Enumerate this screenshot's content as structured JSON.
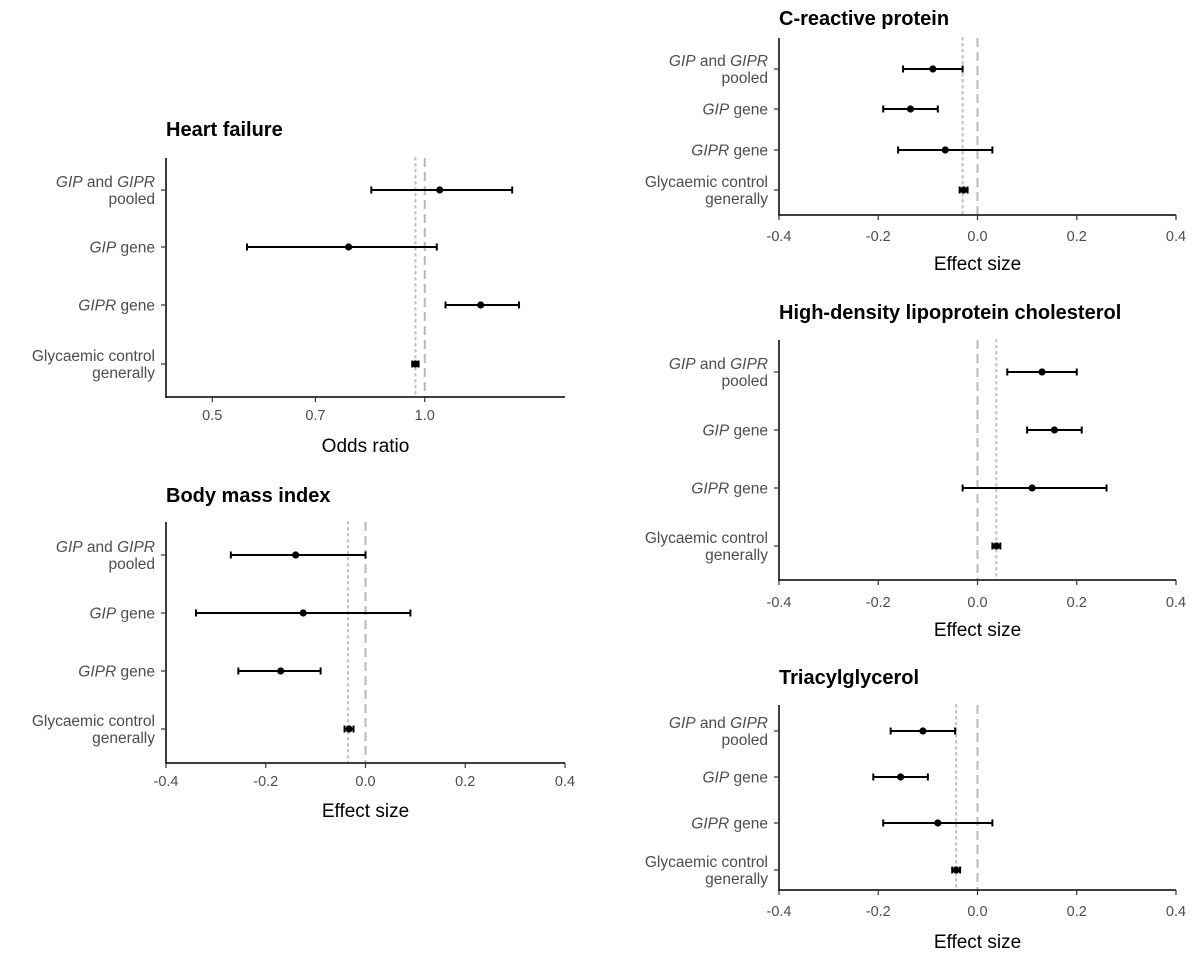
{
  "chart_data": [
    {
      "type": "forest",
      "title": "Heart failure",
      "xlabel": "Odds ratio",
      "x_scale": "log",
      "xlim": [
        0.43,
        1.58
      ],
      "xticks": [
        0.5,
        0.7,
        1.0
      ],
      "tick_labels": [
        "0.5",
        "0.7",
        "1.0"
      ],
      "null_line": 1.0,
      "reference_line": 0.97,
      "rows": [
        {
          "label": [
            {
              "t": "GIP",
              "i": true
            },
            {
              "t": " and ",
              "i": false
            },
            {
              "t": "GIPR",
              "i": true
            }
          ],
          "label2": "pooled",
          "estimate": 1.05,
          "lo": 0.84,
          "hi": 1.33
        },
        {
          "label": [
            {
              "t": "GIP",
              "i": true
            },
            {
              "t": " gene",
              "i": false
            }
          ],
          "label2": "",
          "estimate": 0.78,
          "lo": 0.56,
          "hi": 1.04
        },
        {
          "label": [
            {
              "t": "GIPR",
              "i": true
            },
            {
              "t": " gene",
              "i": false
            }
          ],
          "label2": "",
          "estimate": 1.2,
          "lo": 1.07,
          "hi": 1.36
        },
        {
          "label": [
            {
              "t": "Glycaemic control",
              "i": false
            }
          ],
          "label2": "generally",
          "estimate": 0.97,
          "lo": 0.96,
          "hi": 0.98
        }
      ]
    },
    {
      "type": "forest",
      "title": "Body mass index",
      "xlabel": "Effect size",
      "xlim": [
        -0.4,
        0.4
      ],
      "xticks": [
        -0.4,
        -0.2,
        0.0,
        0.2,
        0.4
      ],
      "tick_labels": [
        "-0.4",
        "-0.2",
        "0.0",
        "0.2",
        "0.4"
      ],
      "null_line": 0.0,
      "reference_line": -0.035,
      "rows": [
        {
          "label": [
            {
              "t": "GIP",
              "i": true
            },
            {
              "t": " and ",
              "i": false
            },
            {
              "t": "GIPR",
              "i": true
            }
          ],
          "label2": "pooled",
          "estimate": -0.14,
          "lo": -0.27,
          "hi": 0.0
        },
        {
          "label": [
            {
              "t": "GIP",
              "i": true
            },
            {
              "t": " gene",
              "i": false
            }
          ],
          "label2": "",
          "estimate": -0.125,
          "lo": -0.34,
          "hi": 0.09
        },
        {
          "label": [
            {
              "t": "GIPR",
              "i": true
            },
            {
              "t": " gene",
              "i": false
            }
          ],
          "label2": "",
          "estimate": -0.17,
          "lo": -0.255,
          "hi": -0.09
        },
        {
          "label": [
            {
              "t": "Glycaemic control",
              "i": false
            }
          ],
          "label2": "generally",
          "estimate": -0.033,
          "lo": -0.042,
          "hi": -0.024
        }
      ]
    },
    {
      "type": "forest",
      "title": "C-reactive protein",
      "xlabel": "Effect size",
      "xlim": [
        -0.4,
        0.4
      ],
      "xticks": [
        -0.4,
        -0.2,
        0.0,
        0.2,
        0.4
      ],
      "tick_labels": [
        "-0.4",
        "-0.2",
        "0.0",
        "0.2",
        "0.4"
      ],
      "null_line": 0.0,
      "reference_line": -0.03,
      "rows": [
        {
          "label": [
            {
              "t": "GIP",
              "i": true
            },
            {
              "t": " and ",
              "i": false
            },
            {
              "t": "GIPR",
              "i": true
            }
          ],
          "label2": "pooled",
          "estimate": -0.09,
          "lo": -0.15,
          "hi": -0.03
        },
        {
          "label": [
            {
              "t": "GIP",
              "i": true
            },
            {
              "t": " gene",
              "i": false
            }
          ],
          "label2": "",
          "estimate": -0.135,
          "lo": -0.19,
          "hi": -0.08
        },
        {
          "label": [
            {
              "t": "GIPR",
              "i": true
            },
            {
              "t": " gene",
              "i": false
            }
          ],
          "label2": "",
          "estimate": -0.065,
          "lo": -0.16,
          "hi": 0.03
        },
        {
          "label": [
            {
              "t": "Glycaemic control",
              "i": false
            }
          ],
          "label2": "generally",
          "estimate": -0.028,
          "lo": -0.036,
          "hi": -0.02
        }
      ]
    },
    {
      "type": "forest",
      "title": "High-density lipoprotein cholesterol",
      "xlabel": "Effect size",
      "xlim": [
        -0.4,
        0.4
      ],
      "xticks": [
        -0.4,
        -0.2,
        0.0,
        0.2,
        0.4
      ],
      "tick_labels": [
        "-0.4",
        "-0.2",
        "0.0",
        "0.2",
        "0.4"
      ],
      "null_line": 0.0,
      "reference_line": 0.038,
      "rows": [
        {
          "label": [
            {
              "t": "GIP",
              "i": true
            },
            {
              "t": " and ",
              "i": false
            },
            {
              "t": "GIPR",
              "i": true
            }
          ],
          "label2": "pooled",
          "estimate": 0.13,
          "lo": 0.06,
          "hi": 0.2
        },
        {
          "label": [
            {
              "t": "GIP",
              "i": true
            },
            {
              "t": " gene",
              "i": false
            }
          ],
          "label2": "",
          "estimate": 0.155,
          "lo": 0.1,
          "hi": 0.21
        },
        {
          "label": [
            {
              "t": "GIPR",
              "i": true
            },
            {
              "t": " gene",
              "i": false
            }
          ],
          "label2": "",
          "estimate": 0.11,
          "lo": -0.03,
          "hi": 0.26
        },
        {
          "label": [
            {
              "t": "Glycaemic control",
              "i": false
            }
          ],
          "label2": "generally",
          "estimate": 0.038,
          "lo": 0.03,
          "hi": 0.046
        }
      ]
    },
    {
      "type": "forest",
      "title": "Triacylglycerol",
      "xlabel": "Effect size",
      "xlim": [
        -0.4,
        0.4
      ],
      "xticks": [
        -0.4,
        -0.2,
        0.0,
        0.2,
        0.4
      ],
      "tick_labels": [
        "-0.4",
        "-0.2",
        "0.0",
        "0.2",
        "0.4"
      ],
      "null_line": 0.0,
      "reference_line": -0.043,
      "rows": [
        {
          "label": [
            {
              "t": "GIP",
              "i": true
            },
            {
              "t": " and ",
              "i": false
            },
            {
              "t": "GIPR",
              "i": true
            }
          ],
          "label2": "pooled",
          "estimate": -0.11,
          "lo": -0.175,
          "hi": -0.045
        },
        {
          "label": [
            {
              "t": "GIP",
              "i": true
            },
            {
              "t": " gene",
              "i": false
            }
          ],
          "label2": "",
          "estimate": -0.155,
          "lo": -0.21,
          "hi": -0.1
        },
        {
          "label": [
            {
              "t": "GIPR",
              "i": true
            },
            {
              "t": " gene",
              "i": false
            }
          ],
          "label2": "",
          "estimate": -0.08,
          "lo": -0.19,
          "hi": 0.03
        },
        {
          "label": [
            {
              "t": "Glycaemic control",
              "i": false
            }
          ],
          "label2": "generally",
          "estimate": -0.043,
          "lo": -0.051,
          "hi": -0.035
        }
      ]
    }
  ]
}
